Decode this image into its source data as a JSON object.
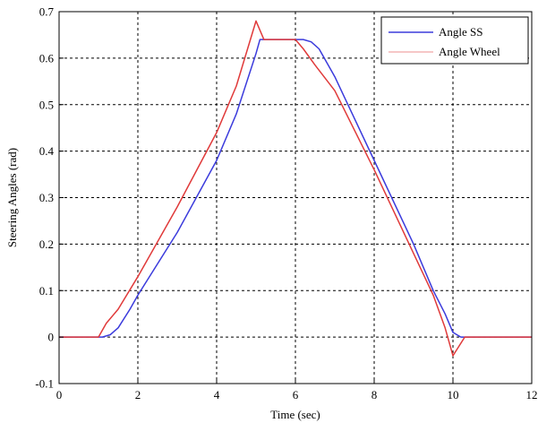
{
  "chart_data": {
    "type": "line",
    "title": "",
    "xlabel": "Time (sec)",
    "ylabel": "Steering Angles (rad)",
    "xlim": [
      0,
      12
    ],
    "ylim": [
      -0.1,
      0.7
    ],
    "xticks": [
      0,
      2,
      4,
      6,
      8,
      10,
      12
    ],
    "xtick_labels": [
      "0",
      "2",
      "4",
      "6",
      "8",
      "10",
      "12"
    ],
    "yticks": [
      -0.1,
      0,
      0.1,
      0.2,
      0.3,
      0.4,
      0.5,
      0.6,
      0.7
    ],
    "ytick_labels": [
      "-0.1",
      "0",
      "0.1",
      "0.2",
      "0.3",
      "0.4",
      "0.5",
      "0.6",
      "0.7"
    ],
    "grid": true,
    "legend_position": "top-right",
    "series": [
      {
        "name": "Angle SS",
        "color": "#3b3bdc",
        "x": [
          0,
          1.1,
          1.3,
          1.5,
          1.8,
          2.0,
          3.0,
          4.0,
          4.5,
          5.0,
          5.1,
          5.5,
          6.0,
          6.2,
          6.4,
          6.6,
          7.0,
          8.0,
          9.0,
          9.5,
          9.8,
          10.0,
          10.2,
          12
        ],
        "y": [
          0,
          0,
          0.005,
          0.02,
          0.06,
          0.09,
          0.225,
          0.38,
          0.48,
          0.61,
          0.64,
          0.64,
          0.64,
          0.64,
          0.635,
          0.62,
          0.56,
          0.38,
          0.2,
          0.1,
          0.05,
          0.01,
          0,
          0
        ]
      },
      {
        "name": "Angle Wheel",
        "color": "#e03a3a",
        "x": [
          0,
          1.0,
          1.2,
          1.5,
          2.0,
          3.0,
          4.0,
          4.5,
          5.0,
          5.2,
          5.5,
          6.0,
          6.2,
          6.5,
          7.0,
          8.0,
          9.0,
          9.5,
          9.8,
          10.0,
          10.15,
          10.3,
          12
        ],
        "y": [
          0,
          0,
          0.03,
          0.06,
          0.13,
          0.28,
          0.44,
          0.54,
          0.68,
          0.64,
          0.64,
          0.64,
          0.62,
          0.585,
          0.53,
          0.36,
          0.18,
          0.09,
          0.02,
          -0.04,
          -0.02,
          0,
          0
        ]
      }
    ]
  }
}
